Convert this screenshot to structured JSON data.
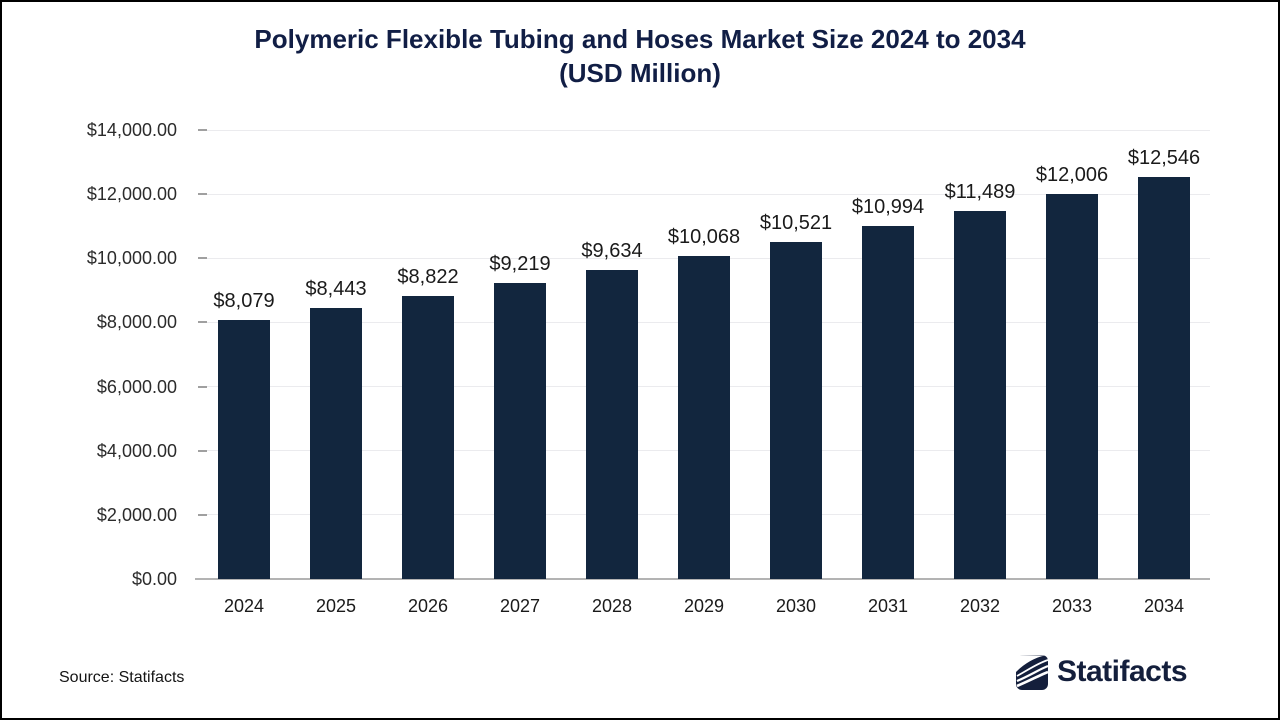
{
  "title": {
    "line1": "Polymeric Flexible Tubing and Hoses Market Size 2024 to 2034",
    "line2": "(USD Million)"
  },
  "source": "Source: Statifacts",
  "logo": {
    "text": "Statifacts",
    "icon": "statifacts-waves-icon"
  },
  "colors": {
    "bar": "#12263e",
    "title": "#111e45",
    "logo_navy": "#141f3c",
    "gridline": "#ebebee",
    "axis_line": "#b3b3b3",
    "tick": "#a0a0a0",
    "label_text": "#1a1a1a"
  },
  "chart_data": {
    "type": "bar",
    "title": "Polymeric Flexible Tubing and Hoses Market Size 2024 to 2034 (USD Million)",
    "xlabel": "",
    "ylabel": "",
    "categories": [
      "2024",
      "2025",
      "2026",
      "2027",
      "2028",
      "2029",
      "2030",
      "2031",
      "2032",
      "2033",
      "2034"
    ],
    "values": [
      8079,
      8443,
      8822,
      9219,
      9634,
      10068,
      10521,
      10994,
      11489,
      12006,
      12546
    ],
    "value_labels": [
      "$8,079",
      "$8,443",
      "$8,822",
      "$9,219",
      "$9,634",
      "$10,068",
      "$10,521",
      "$10,994",
      "$11,489",
      "$12,006",
      "$12,546"
    ],
    "ylim": [
      0,
      14000
    ],
    "ytick_step": 2000,
    "ytick_labels": [
      "$0.00",
      "$2,000.00",
      "$4,000.00",
      "$6,000.00",
      "$8,000.00",
      "$10,000.00",
      "$12,000.00",
      "$14,000.00"
    ],
    "grid": true,
    "legend": false
  }
}
